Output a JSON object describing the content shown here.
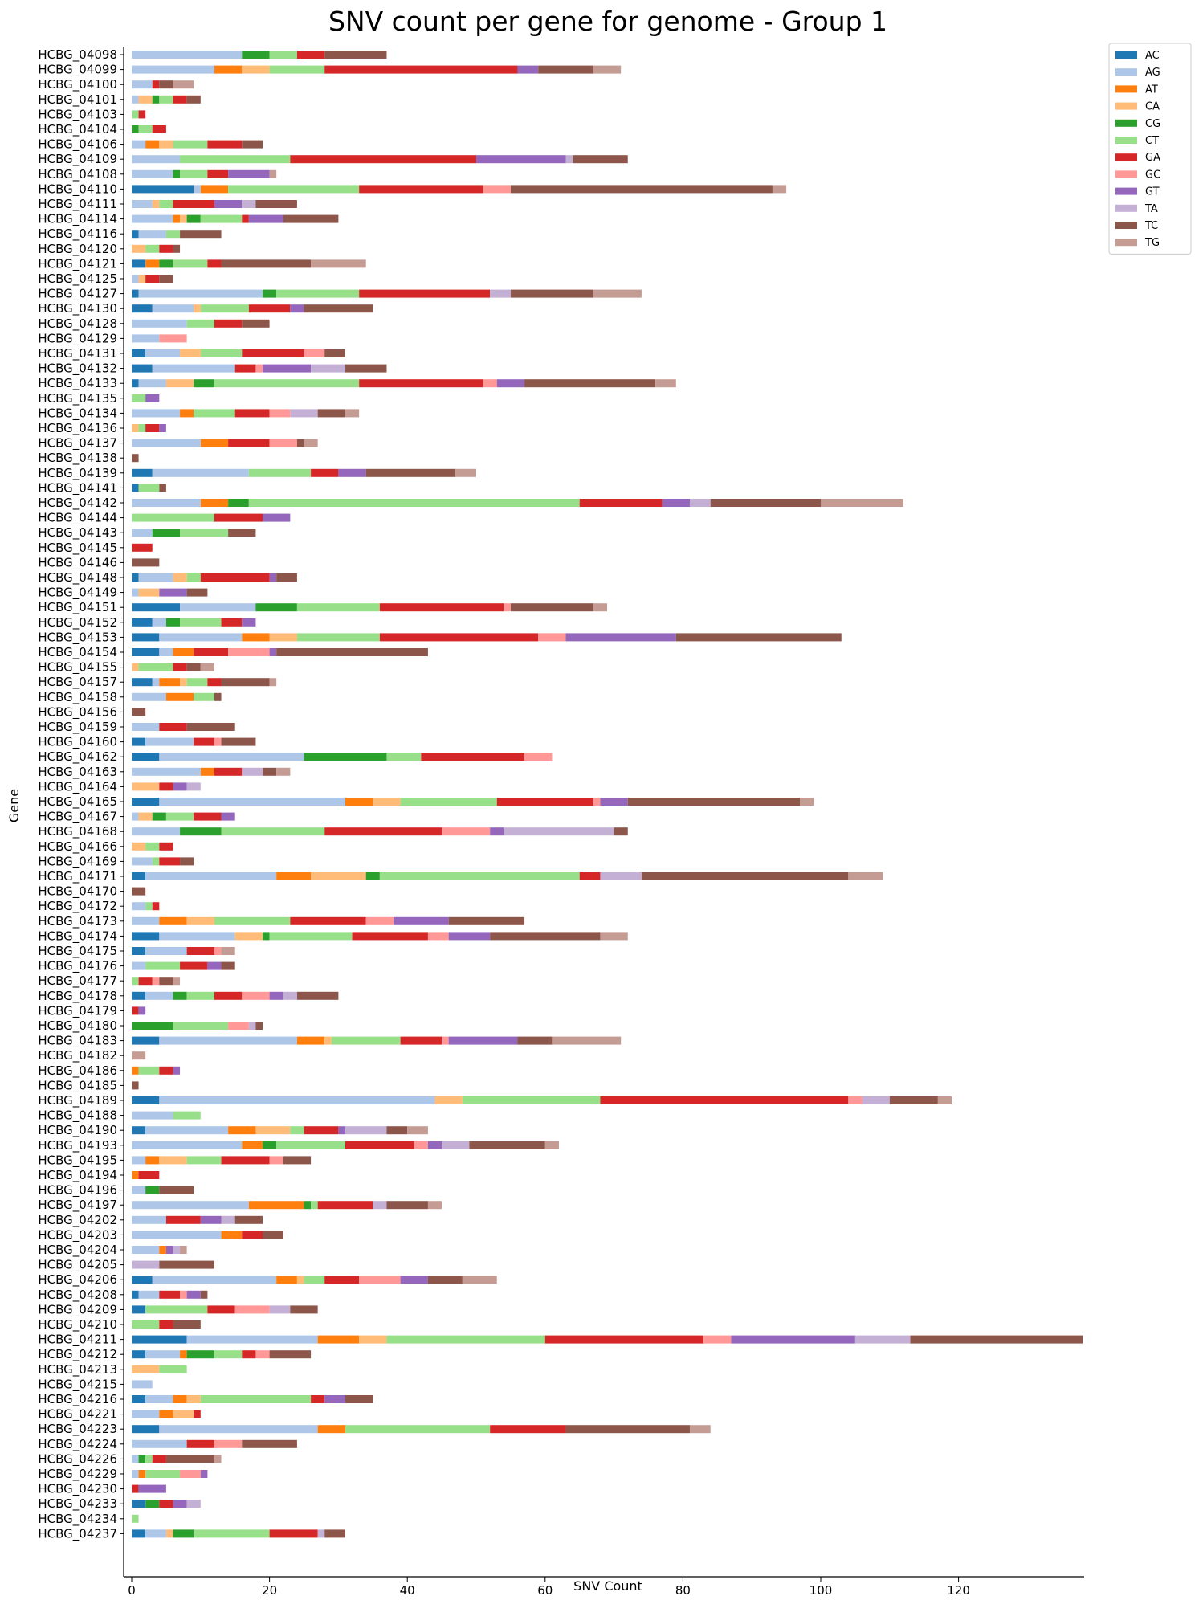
{
  "chart_data": {
    "type": "bar",
    "orientation": "horizontal",
    "stacked": true,
    "title": "SNV count per gene for genome - Group 1",
    "xlabel": "SNV Count",
    "ylabel": "Gene",
    "xlim": [
      -1,
      138
    ],
    "xticks": [
      0,
      20,
      40,
      60,
      80,
      100,
      120
    ],
    "grid": false,
    "legend_position": "upper-right-outside",
    "series_names": [
      "AC",
      "AG",
      "AT",
      "CA",
      "CG",
      "CT",
      "GA",
      "GC",
      "GT",
      "TA",
      "TC",
      "TG"
    ],
    "colors": [
      "#1f77b4",
      "#aec7e8",
      "#ff7f0e",
      "#ffbb78",
      "#2ca02c",
      "#98df8a",
      "#d62728",
      "#ff9896",
      "#9467bd",
      "#c5b0d5",
      "#8c564b",
      "#c49c94"
    ],
    "categories": [
      "HCBG_04098",
      "HCBG_04099",
      "HCBG_04100",
      "HCBG_04101",
      "HCBG_04103",
      "HCBG_04104",
      "HCBG_04106",
      "HCBG_04109",
      "HCBG_04108",
      "HCBG_04110",
      "HCBG_04111",
      "HCBG_04114",
      "HCBG_04116",
      "HCBG_04120",
      "HCBG_04121",
      "HCBG_04125",
      "HCBG_04127",
      "HCBG_04130",
      "HCBG_04128",
      "HCBG_04129",
      "HCBG_04131",
      "HCBG_04132",
      "HCBG_04133",
      "HCBG_04135",
      "HCBG_04134",
      "HCBG_04136",
      "HCBG_04137",
      "HCBG_04138",
      "HCBG_04139",
      "HCBG_04141",
      "HCBG_04142",
      "HCBG_04144",
      "HCBG_04143",
      "HCBG_04145",
      "HCBG_04146",
      "HCBG_04148",
      "HCBG_04149",
      "HCBG_04151",
      "HCBG_04152",
      "HCBG_04153",
      "HCBG_04154",
      "HCBG_04155",
      "HCBG_04157",
      "HCBG_04158",
      "HCBG_04156",
      "HCBG_04159",
      "HCBG_04160",
      "HCBG_04162",
      "HCBG_04163",
      "HCBG_04164",
      "HCBG_04165",
      "HCBG_04167",
      "HCBG_04168",
      "HCBG_04166",
      "HCBG_04169",
      "HCBG_04171",
      "HCBG_04170",
      "HCBG_04172",
      "HCBG_04173",
      "HCBG_04174",
      "HCBG_04175",
      "HCBG_04176",
      "HCBG_04177",
      "HCBG_04178",
      "HCBG_04179",
      "HCBG_04180",
      "HCBG_04183",
      "HCBG_04182",
      "HCBG_04186",
      "HCBG_04185",
      "HCBG_04189",
      "HCBG_04188",
      "HCBG_04190",
      "HCBG_04193",
      "HCBG_04195",
      "HCBG_04194",
      "HCBG_04196",
      "HCBG_04197",
      "HCBG_04202",
      "HCBG_04203",
      "HCBG_04204",
      "HCBG_04205",
      "HCBG_04206",
      "HCBG_04208",
      "HCBG_04209",
      "HCBG_04210",
      "HCBG_04211",
      "HCBG_04212",
      "HCBG_04213",
      "HCBG_04215",
      "HCBG_04216",
      "HCBG_04221",
      "HCBG_04223",
      "HCBG_04224",
      "HCBG_04226",
      "HCBG_04229",
      "HCBG_04230",
      "HCBG_04233",
      "HCBG_04234",
      "HCBG_04237"
    ],
    "values": [
      [
        0,
        16,
        0,
        0,
        4,
        4,
        4,
        0,
        0,
        0,
        9,
        0
      ],
      [
        0,
        12,
        4,
        4,
        0,
        8,
        28,
        0,
        3,
        0,
        8,
        4
      ],
      [
        0,
        3,
        0,
        0,
        0,
        0,
        1,
        0,
        0,
        0,
        2,
        3
      ],
      [
        0,
        1,
        0,
        2,
        1,
        2,
        2,
        0,
        0,
        0,
        2,
        0
      ],
      [
        0,
        0,
        0,
        0,
        0,
        1,
        1,
        0,
        0,
        0,
        0,
        0
      ],
      [
        0,
        0,
        0,
        0,
        1,
        2,
        2,
        0,
        0,
        0,
        0,
        0
      ],
      [
        0,
        2,
        2,
        2,
        0,
        5,
        5,
        0,
        0,
        0,
        3,
        0
      ],
      [
        0,
        7,
        0,
        0,
        0,
        16,
        27,
        0,
        13,
        1,
        8,
        0
      ],
      [
        0,
        6,
        0,
        0,
        1,
        4,
        3,
        0,
        6,
        0,
        0,
        1
      ],
      [
        9,
        1,
        4,
        0,
        0,
        19,
        18,
        4,
        0,
        0,
        38,
        2
      ],
      [
        0,
        3,
        0,
        1,
        0,
        2,
        6,
        0,
        4,
        2,
        6,
        0
      ],
      [
        0,
        6,
        1,
        1,
        2,
        6,
        1,
        0,
        5,
        0,
        8,
        0
      ],
      [
        1,
        4,
        0,
        0,
        0,
        2,
        0,
        0,
        0,
        0,
        6,
        0
      ],
      [
        0,
        0,
        0,
        2,
        0,
        2,
        2,
        0,
        0,
        0,
        1,
        0
      ],
      [
        2,
        0,
        2,
        0,
        2,
        5,
        2,
        0,
        0,
        0,
        13,
        8
      ],
      [
        0,
        1,
        0,
        1,
        0,
        0,
        2,
        0,
        0,
        0,
        2,
        0
      ],
      [
        1,
        18,
        0,
        0,
        2,
        12,
        19,
        0,
        0,
        3,
        12,
        7
      ],
      [
        3,
        6,
        0,
        1,
        0,
        7,
        6,
        0,
        2,
        0,
        10,
        0
      ],
      [
        0,
        8,
        0,
        0,
        0,
        4,
        4,
        0,
        0,
        0,
        4,
        0
      ],
      [
        0,
        4,
        0,
        0,
        0,
        0,
        0,
        4,
        0,
        0,
        0,
        0
      ],
      [
        2,
        5,
        0,
        3,
        0,
        6,
        9,
        3,
        0,
        0,
        3,
        0
      ],
      [
        3,
        12,
        0,
        0,
        0,
        0,
        3,
        1,
        7,
        5,
        6,
        0
      ],
      [
        1,
        4,
        0,
        4,
        3,
        21,
        18,
        2,
        4,
        0,
        19,
        3
      ],
      [
        0,
        0,
        0,
        0,
        0,
        2,
        0,
        0,
        2,
        0,
        0,
        0
      ],
      [
        0,
        7,
        2,
        0,
        0,
        6,
        5,
        3,
        0,
        4,
        4,
        2
      ],
      [
        0,
        0,
        0,
        1,
        0,
        1,
        2,
        0,
        1,
        0,
        0,
        0
      ],
      [
        0,
        10,
        4,
        0,
        0,
        0,
        6,
        4,
        0,
        0,
        1,
        2
      ],
      [
        0,
        0,
        0,
        0,
        0,
        0,
        0,
        0,
        0,
        0,
        1,
        0
      ],
      [
        3,
        14,
        0,
        0,
        0,
        9,
        4,
        0,
        4,
        0,
        13,
        3
      ],
      [
        1,
        0,
        0,
        0,
        0,
        3,
        0,
        0,
        0,
        0,
        1,
        0
      ],
      [
        0,
        10,
        4,
        0,
        3,
        48,
        12,
        0,
        4,
        3,
        16,
        12
      ],
      [
        0,
        0,
        0,
        0,
        0,
        12,
        7,
        0,
        4,
        0,
        0,
        0
      ],
      [
        0,
        3,
        0,
        0,
        4,
        7,
        0,
        0,
        0,
        0,
        4,
        0
      ],
      [
        0,
        0,
        0,
        0,
        0,
        0,
        3,
        0,
        0,
        0,
        0,
        0
      ],
      [
        0,
        0,
        0,
        0,
        0,
        0,
        0,
        0,
        0,
        0,
        4,
        0
      ],
      [
        1,
        5,
        0,
        2,
        0,
        2,
        10,
        0,
        1,
        0,
        3,
        0
      ],
      [
        0,
        1,
        0,
        3,
        0,
        0,
        0,
        0,
        4,
        0,
        3,
        0
      ],
      [
        7,
        11,
        0,
        0,
        6,
        12,
        18,
        1,
        0,
        0,
        12,
        2
      ],
      [
        3,
        2,
        0,
        0,
        2,
        6,
        3,
        0,
        2,
        0,
        0,
        0
      ],
      [
        4,
        12,
        4,
        4,
        0,
        12,
        23,
        4,
        16,
        0,
        24,
        0
      ],
      [
        4,
        2,
        3,
        0,
        0,
        0,
        5,
        6,
        1,
        0,
        22,
        0
      ],
      [
        0,
        0,
        0,
        1,
        0,
        5,
        2,
        0,
        0,
        0,
        2,
        2
      ],
      [
        3,
        1,
        3,
        1,
        0,
        3,
        2,
        0,
        0,
        0,
        7,
        1
      ],
      [
        0,
        5,
        4,
        0,
        0,
        3,
        0,
        0,
        0,
        0,
        1,
        0
      ],
      [
        0,
        0,
        0,
        0,
        0,
        0,
        0,
        0,
        0,
        0,
        2,
        0
      ],
      [
        0,
        4,
        0,
        0,
        0,
        0,
        4,
        0,
        0,
        0,
        7,
        0
      ],
      [
        2,
        7,
        0,
        0,
        0,
        0,
        3,
        1,
        0,
        0,
        5,
        0
      ],
      [
        4,
        21,
        0,
        0,
        12,
        5,
        15,
        4,
        0,
        0,
        0,
        0
      ],
      [
        0,
        10,
        2,
        0,
        0,
        0,
        4,
        0,
        0,
        3,
        2,
        2
      ],
      [
        0,
        0,
        0,
        4,
        0,
        0,
        2,
        0,
        2,
        2,
        0,
        0
      ],
      [
        4,
        27,
        4,
        4,
        0,
        14,
        14,
        1,
        4,
        0,
        25,
        2
      ],
      [
        0,
        1,
        0,
        2,
        2,
        4,
        4,
        0,
        2,
        0,
        0,
        0
      ],
      [
        0,
        7,
        0,
        0,
        6,
        15,
        17,
        7,
        2,
        16,
        2,
        0
      ],
      [
        0,
        0,
        0,
        2,
        0,
        2,
        2,
        0,
        0,
        0,
        0,
        0
      ],
      [
        0,
        3,
        0,
        0,
        0,
        1,
        3,
        0,
        0,
        0,
        2,
        0
      ],
      [
        2,
        19,
        5,
        8,
        2,
        29,
        3,
        0,
        0,
        6,
        30,
        5
      ],
      [
        0,
        0,
        0,
        0,
        0,
        0,
        0,
        0,
        0,
        0,
        2,
        0
      ],
      [
        0,
        2,
        0,
        0,
        0,
        1,
        1,
        0,
        0,
        0,
        0,
        0
      ],
      [
        0,
        4,
        4,
        4,
        0,
        11,
        11,
        4,
        8,
        0,
        11,
        0
      ],
      [
        4,
        11,
        0,
        4,
        1,
        12,
        11,
        3,
        6,
        0,
        16,
        4
      ],
      [
        2,
        6,
        0,
        0,
        0,
        0,
        4,
        1,
        0,
        0,
        0,
        2
      ],
      [
        0,
        2,
        0,
        0,
        0,
        5,
        4,
        0,
        2,
        0,
        2,
        0
      ],
      [
        0,
        0,
        0,
        0,
        0,
        1,
        2,
        1,
        0,
        0,
        2,
        1
      ],
      [
        2,
        4,
        0,
        0,
        2,
        4,
        4,
        4,
        2,
        2,
        6,
        0
      ],
      [
        0,
        0,
        0,
        0,
        0,
        0,
        1,
        0,
        1,
        0,
        0,
        0
      ],
      [
        0,
        0,
        0,
        0,
        6,
        8,
        0,
        3,
        0,
        1,
        1,
        0
      ],
      [
        4,
        20,
        4,
        1,
        0,
        10,
        6,
        1,
        10,
        0,
        5,
        10
      ],
      [
        0,
        0,
        0,
        0,
        0,
        0,
        0,
        0,
        0,
        0,
        0,
        2
      ],
      [
        0,
        0,
        1,
        0,
        0,
        3,
        2,
        0,
        1,
        0,
        0,
        0
      ],
      [
        0,
        0,
        0,
        0,
        0,
        0,
        0,
        0,
        0,
        0,
        1,
        0
      ],
      [
        4,
        40,
        0,
        4,
        0,
        20,
        36,
        2,
        0,
        4,
        7,
        2
      ],
      [
        0,
        6,
        0,
        0,
        0,
        4,
        0,
        0,
        0,
        0,
        0,
        0
      ],
      [
        2,
        12,
        4,
        5,
        0,
        2,
        5,
        0,
        1,
        6,
        3,
        3
      ],
      [
        0,
        16,
        3,
        0,
        2,
        10,
        10,
        2,
        2,
        4,
        11,
        2
      ],
      [
        0,
        2,
        2,
        4,
        0,
        5,
        7,
        2,
        0,
        0,
        4,
        0
      ],
      [
        0,
        0,
        1,
        0,
        0,
        0,
        3,
        0,
        0,
        0,
        0,
        0
      ],
      [
        0,
        2,
        0,
        0,
        2,
        0,
        0,
        0,
        0,
        0,
        5,
        0
      ],
      [
        0,
        17,
        8,
        0,
        1,
        1,
        8,
        0,
        0,
        2,
        6,
        2
      ],
      [
        0,
        5,
        0,
        0,
        0,
        0,
        5,
        0,
        3,
        2,
        4,
        0
      ],
      [
        0,
        13,
        3,
        0,
        0,
        0,
        3,
        0,
        0,
        0,
        3,
        0
      ],
      [
        0,
        4,
        1,
        0,
        0,
        0,
        0,
        0,
        1,
        1,
        0,
        1
      ],
      [
        0,
        0,
        0,
        0,
        0,
        0,
        0,
        0,
        0,
        4,
        8,
        0
      ],
      [
        3,
        18,
        3,
        1,
        0,
        3,
        5,
        6,
        4,
        0,
        5,
        5
      ],
      [
        1,
        3,
        0,
        0,
        0,
        0,
        3,
        1,
        2,
        0,
        1,
        0
      ],
      [
        2,
        0,
        0,
        0,
        0,
        9,
        4,
        5,
        0,
        3,
        4,
        0
      ],
      [
        0,
        0,
        0,
        0,
        0,
        4,
        2,
        0,
        0,
        0,
        4,
        0
      ],
      [
        8,
        19,
        6,
        4,
        0,
        23,
        23,
        4,
        18,
        8,
        25,
        0
      ],
      [
        2,
        5,
        1,
        0,
        4,
        4,
        2,
        2,
        0,
        0,
        6,
        0
      ],
      [
        0,
        0,
        0,
        4,
        0,
        4,
        0,
        0,
        0,
        0,
        0,
        0
      ],
      [
        0,
        3,
        0,
        0,
        0,
        0,
        0,
        0,
        0,
        0,
        0,
        0
      ],
      [
        2,
        4,
        2,
        2,
        0,
        16,
        2,
        0,
        3,
        0,
        4,
        0
      ],
      [
        0,
        4,
        2,
        3,
        0,
        0,
        1,
        0,
        0,
        0,
        0,
        0
      ],
      [
        4,
        23,
        4,
        0,
        0,
        21,
        11,
        0,
        0,
        0,
        18,
        3
      ],
      [
        0,
        8,
        0,
        0,
        0,
        0,
        4,
        4,
        0,
        0,
        8,
        0
      ],
      [
        0,
        1,
        0,
        0,
        1,
        1,
        2,
        0,
        0,
        0,
        7,
        1
      ],
      [
        0,
        1,
        1,
        0,
        0,
        5,
        0,
        3,
        1,
        0,
        0,
        0
      ],
      [
        0,
        0,
        0,
        0,
        0,
        0,
        1,
        0,
        4,
        0,
        0,
        0
      ],
      [
        2,
        0,
        0,
        0,
        2,
        0,
        2,
        0,
        2,
        2,
        0,
        0
      ],
      [
        0,
        0,
        0,
        0,
        0,
        1,
        0,
        0,
        0,
        0,
        0,
        0
      ],
      [
        2,
        3,
        0,
        1,
        3,
        11,
        7,
        0,
        0,
        1,
        3,
        0
      ]
    ]
  }
}
